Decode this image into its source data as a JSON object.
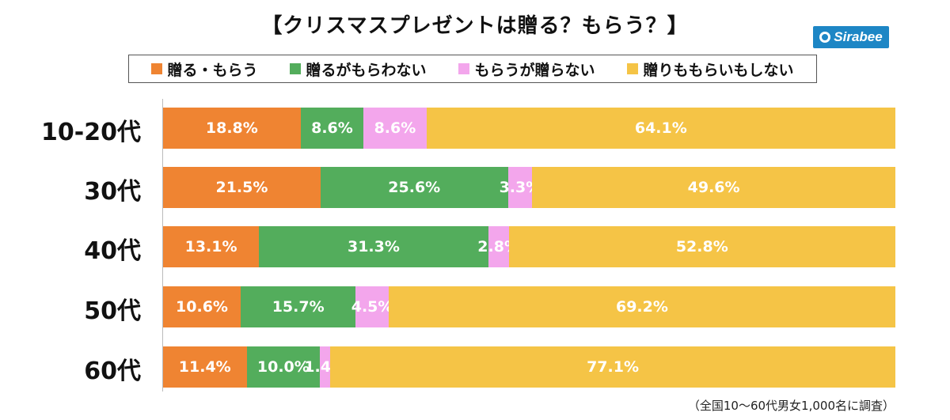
{
  "chart_data": {
    "type": "bar",
    "orientation": "horizontal",
    "stacked": true,
    "title": "【クリスマスプレゼントは贈る？もらう？】",
    "categories": [
      "10-20代",
      "30代",
      "40代",
      "50代",
      "60代"
    ],
    "series": [
      {
        "name": "贈る・もらう",
        "color": "#ef8432",
        "values": [
          18.8,
          21.5,
          13.1,
          10.6,
          11.4
        ],
        "labels": [
          "18.8%",
          "21.5%",
          "13.1%",
          "10.6%",
          "11.4%"
        ]
      },
      {
        "name": "贈るがもらわない",
        "color": "#53ad5c",
        "values": [
          8.6,
          25.6,
          31.3,
          15.7,
          10.0
        ],
        "labels": [
          "8.6%",
          "25.6%",
          "31.3%",
          "15.7%",
          "10.0%"
        ]
      },
      {
        "name": "もらうが贈らない",
        "color": "#f3a6ec",
        "values": [
          8.6,
          3.3,
          2.8,
          4.5,
          1.4
        ],
        "labels": [
          "8.6%",
          "3.3%",
          "2.8%",
          "4.5%",
          "1.4%"
        ]
      },
      {
        "name": "贈りももらいもしない",
        "color": "#f5c446",
        "values": [
          64.1,
          49.6,
          52.8,
          69.2,
          77.1
        ],
        "labels": [
          "64.1%",
          "49.6%",
          "52.8%",
          "69.2%",
          "77.1%"
        ]
      }
    ],
    "xlim": [
      0,
      100
    ],
    "legend_position": "top"
  },
  "brand": {
    "logo_text": "Sirabee",
    "logo_color": "#1d86c5"
  },
  "footnote": "（全国10〜60代男女1,000名に調査）"
}
